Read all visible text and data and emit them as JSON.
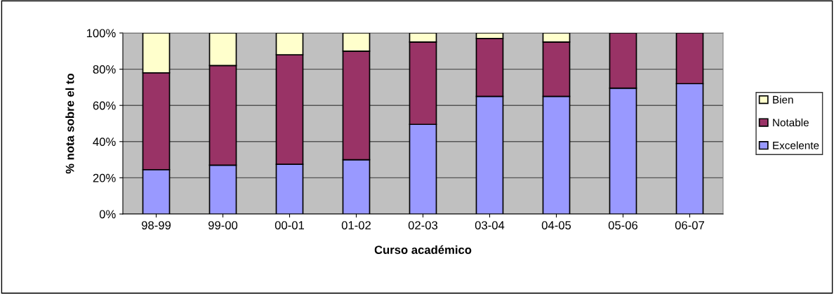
{
  "chart_data": {
    "type": "bar",
    "stacked": true,
    "xlabel": "Curso académico",
    "ylabel": "% nota sobre el to",
    "categories": [
      "98-99",
      "99-00",
      "00-01",
      "01-02",
      "02-03",
      "03-04",
      "04-05",
      "05-06",
      "06-07"
    ],
    "series": [
      {
        "name": "Excelente",
        "color": "#9999ff",
        "values": [
          24.5,
          27,
          27.5,
          30,
          49.5,
          65,
          65,
          69.5,
          72
        ]
      },
      {
        "name": "Notable",
        "color": "#993366",
        "values": [
          53.5,
          55,
          60.5,
          60,
          45.5,
          32,
          30,
          30.5,
          28
        ]
      },
      {
        "name": "Bien",
        "color": "#ffffcc",
        "values": [
          22,
          18,
          12,
          10,
          5,
          3,
          5,
          null,
          null
        ]
      }
    ],
    "ylim": [
      0,
      100
    ],
    "yticks": [
      {
        "value": 0,
        "label": "0%"
      },
      {
        "value": 20,
        "label": "20%"
      },
      {
        "value": 40,
        "label": "40%"
      },
      {
        "value": 60,
        "label": "60%"
      },
      {
        "value": 80,
        "label": "80%"
      },
      {
        "value": 100,
        "label": "100%"
      }
    ],
    "grid": "y",
    "legend": "right"
  }
}
